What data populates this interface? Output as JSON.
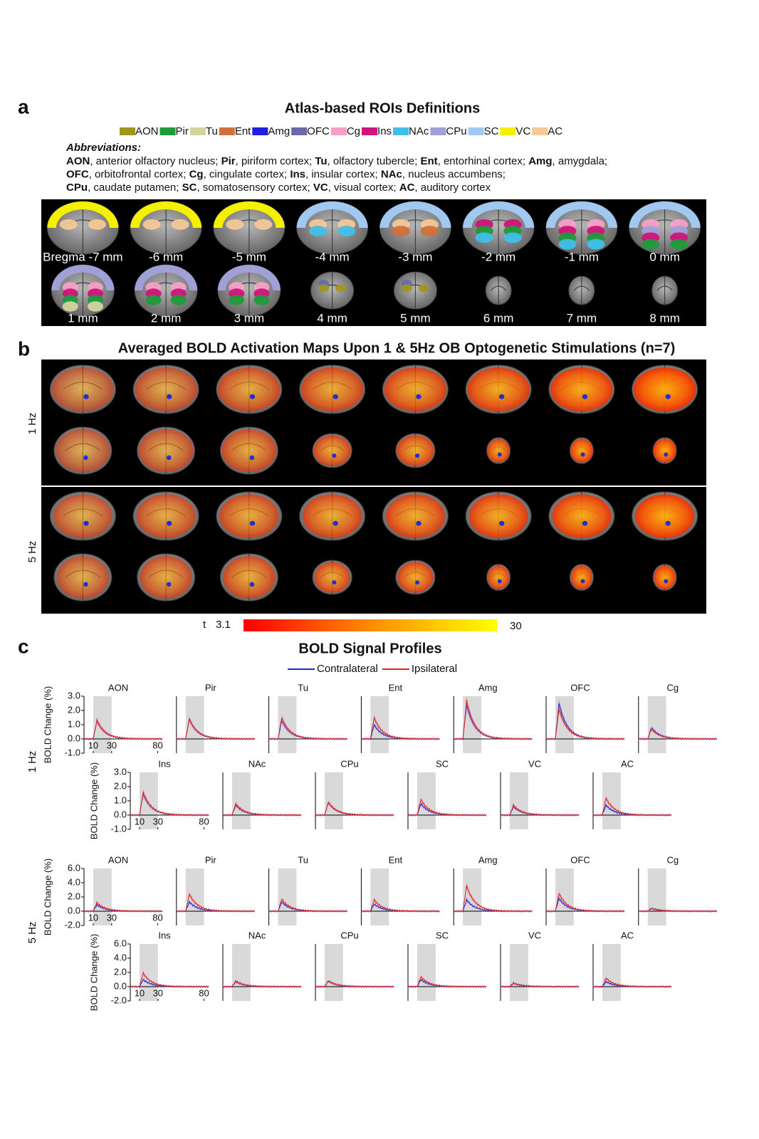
{
  "panel_a": {
    "label": "a",
    "title": "Atlas-based ROIs Definitions",
    "legend": [
      {
        "name": "AON",
        "color": "#a0961a"
      },
      {
        "name": "Pir",
        "color": "#1f9a3c"
      },
      {
        "name": "Tu",
        "color": "#d4d4a0"
      },
      {
        "name": "Ent",
        "color": "#d2703c"
      },
      {
        "name": "Amg",
        "color": "#1f1fe0"
      },
      {
        "name": "OFC",
        "color": "#6a6aa8"
      },
      {
        "name": "Cg",
        "color": "#f5a0c8"
      },
      {
        "name": "Ins",
        "color": "#d0147a"
      },
      {
        "name": "NAc",
        "color": "#40bfe8"
      },
      {
        "name": "CPu",
        "color": "#a0a0d8"
      },
      {
        "name": "SC",
        "color": "#a0c8f0"
      },
      {
        "name": "VC",
        "color": "#f5f000"
      },
      {
        "name": "AC",
        "color": "#f5c896"
      }
    ],
    "abbreviations_title": "Abbreviations:",
    "abbreviations": [
      [
        {
          "abbr": "AON",
          "text": ", anterior olfactory nucleus; "
        },
        {
          "abbr": "Pir",
          "text": ", piriform cortex; "
        },
        {
          "abbr": "Tu",
          "text": ", olfactory tubercle; "
        },
        {
          "abbr": "Ent",
          "text": ", entorhinal cortex; "
        },
        {
          "abbr": "Amg",
          "text": ", amygdala;"
        }
      ],
      [
        {
          "abbr": "OFC",
          "text": ", orbitofrontal cortex; "
        },
        {
          "abbr": "Cg",
          "text": ", cingulate cortex; "
        },
        {
          "abbr": "Ins",
          "text": ", insular cortex; "
        },
        {
          "abbr": "NAc",
          "text": ", nucleus accumbens;"
        }
      ],
      [
        {
          "abbr": "CPu",
          "text": ", caudate putamen; "
        },
        {
          "abbr": "SC",
          "text": ", somatosensory cortex; "
        },
        {
          "abbr": "VC",
          "text": ", visual cortex; "
        },
        {
          "abbr": "AC",
          "text": ", auditory cortex"
        }
      ]
    ],
    "slices": [
      "Bregma -7 mm",
      "-6 mm",
      "-5 mm",
      "-4 mm",
      "-3 mm",
      "-2 mm",
      "-1 mm",
      "0 mm",
      "1 mm",
      "2 mm",
      "3 mm",
      "4 mm",
      "5 mm",
      "6 mm",
      "7 mm",
      "8 mm"
    ]
  },
  "panel_b": {
    "label": "b",
    "title": "Averaged BOLD Activation Maps Upon 1 & 5Hz OB Optogenetic Stimulations (n=7)",
    "rows": [
      "1 Hz",
      "5 Hz"
    ],
    "colorbar": {
      "label": "t",
      "min": 3.1,
      "max": 30
    }
  },
  "panel_c": {
    "label": "c",
    "title": "BOLD Signal Profiles",
    "ylabel": "BOLD Change (%)",
    "xlim": [
      0,
      85
    ],
    "xticks": [
      10,
      30,
      80
    ],
    "series": [
      {
        "name": "Contralateral",
        "color": "#2525c8"
      },
      {
        "name": "Ipsilateral",
        "color": "#e02424"
      }
    ],
    "conditions": [
      {
        "name": "1 Hz",
        "ylim": [
          -1,
          3
        ],
        "yticks": [
          {
            "value": 3,
            "label": "3.0"
          },
          {
            "value": 2,
            "label": "2.0"
          },
          {
            "value": 1,
            "label": "1.0"
          },
          {
            "value": 0,
            "label": "0.0"
          },
          {
            "value": -1,
            "label": "-1.0"
          }
        ],
        "rois": [
          {
            "name": "AON",
            "peaks": [
              1.3,
              1.3
            ]
          },
          {
            "name": "Pir",
            "peaks": [
              1.4,
              1.4
            ]
          },
          {
            "name": "Tu",
            "peaks": [
              1.3,
              1.5
            ]
          },
          {
            "name": "Ent",
            "peaks": [
              1.0,
              1.5
            ]
          },
          {
            "name": "Amg",
            "peaks": [
              2.4,
              2.7
            ]
          },
          {
            "name": "OFC",
            "peaks": [
              2.5,
              2.1
            ]
          },
          {
            "name": "Cg",
            "peaks": [
              0.8,
              0.7
            ]
          },
          {
            "name": "Ins",
            "peaks": [
              1.5,
              1.6
            ]
          },
          {
            "name": "NAc",
            "peaks": [
              0.7,
              0.8
            ]
          },
          {
            "name": "CPu",
            "peaks": [
              0.9,
              0.9
            ]
          },
          {
            "name": "SC",
            "peaks": [
              0.8,
              1.1
            ]
          },
          {
            "name": "VC",
            "peaks": [
              0.6,
              0.7
            ]
          },
          {
            "name": "AC",
            "peaks": [
              0.7,
              1.2
            ]
          }
        ]
      },
      {
        "name": "5 Hz",
        "ylim": [
          -2,
          6
        ],
        "yticks": [
          {
            "value": 6,
            "label": "6.0"
          },
          {
            "value": 4,
            "label": "4.0"
          },
          {
            "value": 2,
            "label": "2.0"
          },
          {
            "value": 0,
            "label": "0.0"
          },
          {
            "value": -2,
            "label": "-2.0"
          }
        ],
        "rois": [
          {
            "name": "AON",
            "peaks": [
              0.9,
              1.2
            ]
          },
          {
            "name": "Pir",
            "peaks": [
              1.3,
              2.4
            ]
          },
          {
            "name": "Tu",
            "peaks": [
              1.3,
              1.7
            ]
          },
          {
            "name": "Ent",
            "peaks": [
              1.0,
              1.6
            ]
          },
          {
            "name": "Amg",
            "peaks": [
              1.6,
              3.6
            ]
          },
          {
            "name": "OFC",
            "peaks": [
              1.8,
              2.5
            ]
          },
          {
            "name": "Cg",
            "peaks": [
              0.4,
              0.4
            ]
          },
          {
            "name": "Ins",
            "peaks": [
              1.0,
              1.9
            ]
          },
          {
            "name": "NAc",
            "peaks": [
              0.7,
              0.8
            ]
          },
          {
            "name": "CPu",
            "peaks": [
              0.8,
              0.8
            ]
          },
          {
            "name": "SC",
            "peaks": [
              1.0,
              1.4
            ]
          },
          {
            "name": "VC",
            "peaks": [
              0.5,
              0.5
            ]
          },
          {
            "name": "AC",
            "peaks": [
              0.7,
              1.2
            ]
          }
        ]
      }
    ]
  }
}
